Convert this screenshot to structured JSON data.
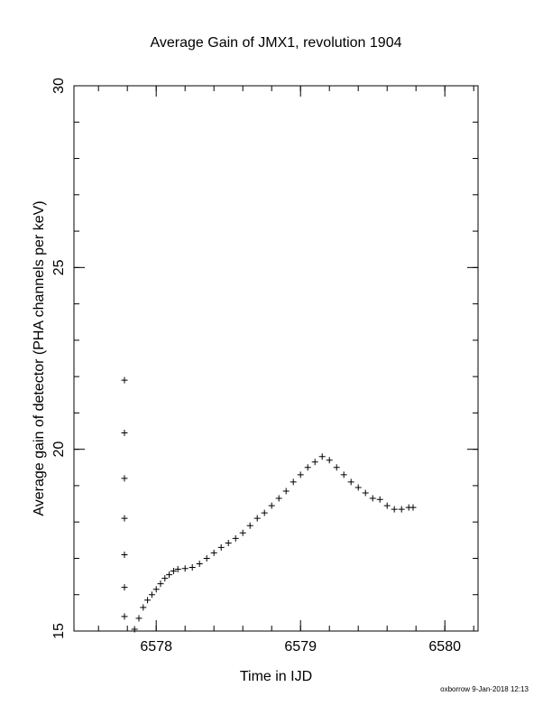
{
  "chart_data": {
    "type": "scatter",
    "title": "Average Gain of JMX1, revolution 1904",
    "xlabel": "Time in IJD",
    "ylabel": "Average gain of detector (PHA channels per keV)",
    "xlim": [
      6577.43,
      6580.23
    ],
    "ylim": [
      15,
      30
    ],
    "xticks": [
      6578,
      6579,
      6580
    ],
    "yticks": [
      15,
      20,
      25,
      30
    ],
    "x_minor_step": 0.2,
    "y_minor_step": 1,
    "grid": false,
    "marker": "+",
    "color": "#000000",
    "series": [
      {
        "x": [
          6577.85,
          6577.88,
          6577.91,
          6577.94,
          6577.97,
          6578.0,
          6578.03,
          6578.06,
          6578.09,
          6578.12,
          6578.15,
          6578.2,
          6578.25,
          6578.3,
          6578.35,
          6578.4,
          6578.45,
          6578.5,
          6578.55,
          6578.6,
          6578.65,
          6578.7,
          6578.75,
          6578.8,
          6578.85,
          6578.9,
          6578.95,
          6579.0,
          6579.05,
          6579.1,
          6579.15,
          6579.2,
          6579.25,
          6579.3,
          6579.35,
          6579.4,
          6579.45,
          6579.5,
          6579.55,
          6579.6,
          6579.65,
          6579.7,
          6579.75,
          6579.78
        ],
        "y": [
          15.05,
          15.35,
          15.65,
          15.85,
          16.0,
          16.15,
          16.3,
          16.45,
          16.55,
          16.65,
          16.7,
          16.72,
          16.75,
          16.85,
          17.0,
          17.15,
          17.3,
          17.42,
          17.55,
          17.7,
          17.9,
          18.1,
          18.25,
          18.45,
          18.65,
          18.85,
          19.1,
          19.3,
          19.5,
          19.65,
          19.8,
          19.7,
          19.5,
          19.3,
          19.1,
          18.95,
          18.8,
          18.65,
          18.62,
          18.45,
          18.35,
          18.35,
          18.4,
          18.4
        ]
      },
      {
        "x": [
          6577.78,
          6577.78,
          6577.78,
          6577.78,
          6577.78,
          6577.78,
          6577.78
        ],
        "y": [
          21.9,
          20.45,
          19.2,
          18.1,
          17.1,
          16.2,
          15.4
        ]
      }
    ]
  },
  "footer": {
    "credit": "oxborrow  9-Jan-2018 12:13"
  }
}
